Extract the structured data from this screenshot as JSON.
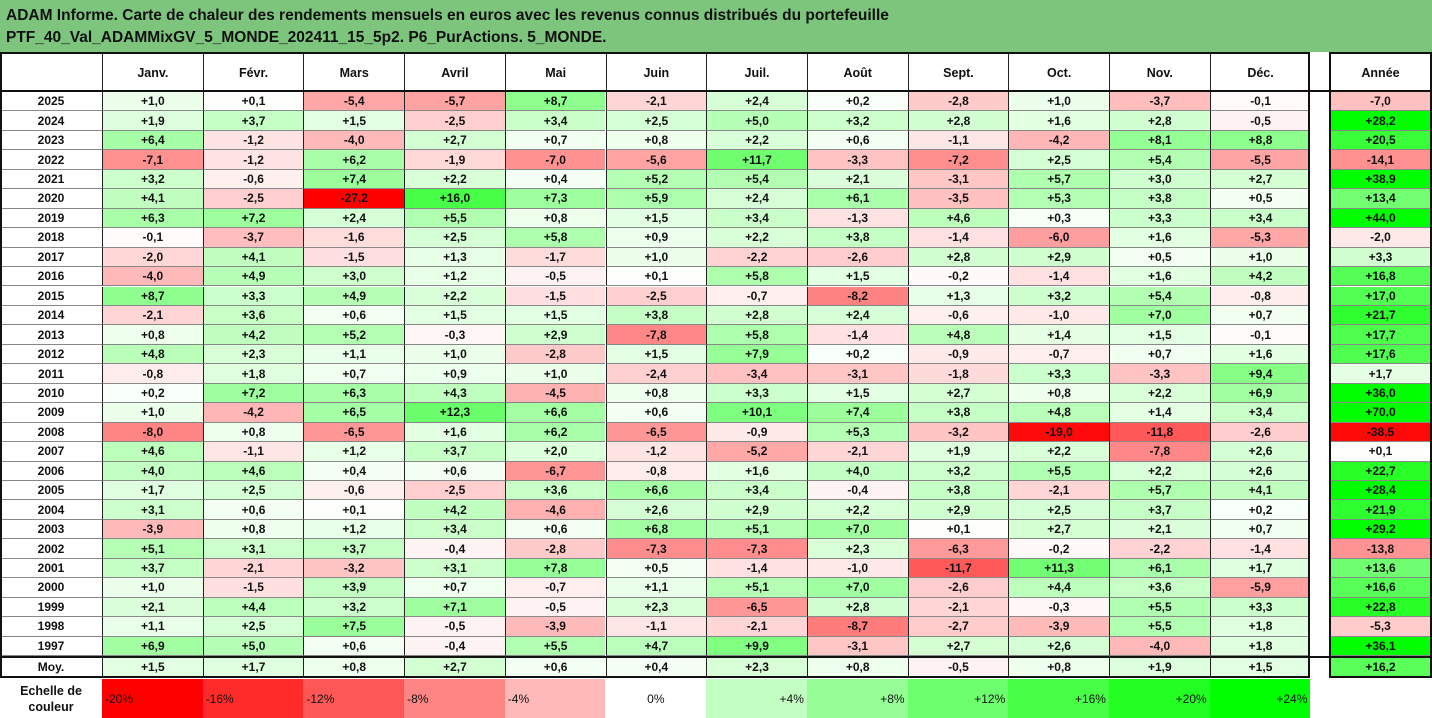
{
  "title": {
    "line1": "ADAM Informe. Carte de chaleur des rendements mensuels en euros avec les revenus connus distribués du portefeuille",
    "line2": "PTF_40_Val_ADAMMixGV_5_MONDE_202411_15_5p2. P6_PurActions. 5_MONDE."
  },
  "chart_data": {
    "type": "heatmap",
    "columns": [
      "Janv.",
      "Févr.",
      "Mars",
      "Avril",
      "Mai",
      "Juin",
      "Juil.",
      "Août",
      "Sept.",
      "Oct.",
      "Nov.",
      "Déc."
    ],
    "year_column": "Année",
    "rows": [
      {
        "label": "2025",
        "values": [
          1.0,
          0.1,
          -5.4,
          -5.7,
          8.7,
          -2.1,
          2.4,
          0.2,
          -2.8,
          1.0,
          -3.7,
          -0.1
        ],
        "year": -7.0
      },
      {
        "label": "2024",
        "values": [
          1.9,
          3.7,
          1.5,
          -2.5,
          3.4,
          2.5,
          5.0,
          3.2,
          2.8,
          1.6,
          2.8,
          -0.5
        ],
        "year": 28.2
      },
      {
        "label": "2023",
        "values": [
          6.4,
          -1.2,
          -4.0,
          2.7,
          0.7,
          0.8,
          2.2,
          0.6,
          -1.1,
          -4.2,
          8.1,
          8.8
        ],
        "year": 20.5
      },
      {
        "label": "2022",
        "values": [
          -7.1,
          -1.2,
          6.2,
          -1.9,
          -7.0,
          -5.6,
          11.7,
          -3.3,
          -7.2,
          2.5,
          5.4,
          -5.5
        ],
        "year": -14.1
      },
      {
        "label": "2021",
        "values": [
          3.2,
          -0.6,
          7.4,
          2.2,
          0.4,
          5.2,
          5.4,
          2.1,
          -3.1,
          5.7,
          3.0,
          2.7
        ],
        "year": 38.9
      },
      {
        "label": "2020",
        "values": [
          4.1,
          -2.5,
          -27.2,
          16.0,
          7.3,
          5.9,
          2.4,
          6.1,
          -3.5,
          5.3,
          3.8,
          0.5
        ],
        "year": 13.4
      },
      {
        "label": "2019",
        "values": [
          6.3,
          7.2,
          2.4,
          5.5,
          0.8,
          1.5,
          3.4,
          -1.3,
          4.6,
          0.3,
          3.3,
          3.4
        ],
        "year": 44.0
      },
      {
        "label": "2018",
        "values": [
          -0.1,
          -3.7,
          -1.6,
          2.5,
          5.8,
          0.9,
          2.2,
          3.8,
          -1.4,
          -6.0,
          1.6,
          -5.3
        ],
        "year": -2.0
      },
      {
        "label": "2017",
        "values": [
          -2.0,
          4.1,
          -1.5,
          1.3,
          -1.7,
          1.0,
          -2.2,
          -2.6,
          2.8,
          2.9,
          0.5,
          1.0
        ],
        "year": 3.3
      },
      {
        "label": "2016",
        "values": [
          -4.0,
          4.9,
          3.0,
          1.2,
          -0.5,
          0.1,
          5.8,
          1.5,
          -0.2,
          -1.4,
          1.6,
          4.2
        ],
        "year": 16.8
      },
      {
        "label": "2015",
        "values": [
          8.7,
          3.3,
          4.9,
          2.2,
          -1.5,
          -2.5,
          -0.7,
          -8.2,
          1.3,
          3.2,
          5.4,
          -0.8
        ],
        "year": 17.0
      },
      {
        "label": "2014",
        "values": [
          -2.1,
          3.6,
          0.6,
          1.5,
          1.5,
          3.8,
          2.8,
          2.4,
          -0.6,
          -1.0,
          7.0,
          0.7
        ],
        "year": 21.7
      },
      {
        "label": "2013",
        "values": [
          0.8,
          4.2,
          5.2,
          -0.3,
          2.9,
          -7.8,
          5.8,
          -1.4,
          4.8,
          1.4,
          1.5,
          -0.1
        ],
        "year": 17.7
      },
      {
        "label": "2012",
        "values": [
          4.8,
          2.3,
          1.1,
          1.0,
          -2.8,
          1.5,
          7.9,
          0.2,
          -0.9,
          -0.7,
          0.7,
          1.6
        ],
        "year": 17.6
      },
      {
        "label": "2011",
        "values": [
          -0.8,
          1.8,
          0.7,
          0.9,
          1.0,
          -2.4,
          -3.4,
          -3.1,
          -1.8,
          3.3,
          -3.3,
          9.4
        ],
        "year": 1.7
      },
      {
        "label": "2010",
        "values": [
          0.2,
          7.2,
          6.3,
          4.3,
          -4.5,
          0.8,
          3.3,
          1.5,
          2.7,
          0.8,
          2.2,
          6.9
        ],
        "year": 36.0
      },
      {
        "label": "2009",
        "values": [
          1.0,
          -4.2,
          6.5,
          12.3,
          6.6,
          0.6,
          10.1,
          7.4,
          3.8,
          4.8,
          1.4,
          3.4
        ],
        "year": 70.0
      },
      {
        "label": "2008",
        "values": [
          -8.0,
          0.8,
          -6.5,
          1.6,
          6.2,
          -6.5,
          -0.9,
          5.3,
          -3.2,
          -19.0,
          -11.8,
          -2.6
        ],
        "year": -38.5
      },
      {
        "label": "2007",
        "values": [
          4.6,
          -1.1,
          1.2,
          3.7,
          2.0,
          -1.2,
          -5.2,
          -2.1,
          1.9,
          2.2,
          -7.8,
          2.6
        ],
        "year": 0.1
      },
      {
        "label": "2006",
        "values": [
          4.0,
          4.6,
          0.4,
          0.6,
          -6.7,
          -0.8,
          1.6,
          4.0,
          3.2,
          5.5,
          2.2,
          2.6
        ],
        "year": 22.7
      },
      {
        "label": "2005",
        "values": [
          1.7,
          2.5,
          -0.6,
          -2.5,
          3.6,
          6.6,
          3.4,
          -0.4,
          3.8,
          -2.1,
          5.7,
          4.1
        ],
        "year": 28.4
      },
      {
        "label": "2004",
        "values": [
          3.1,
          0.6,
          0.1,
          4.2,
          -4.6,
          2.6,
          2.9,
          2.2,
          2.9,
          2.5,
          3.7,
          0.2
        ],
        "year": 21.9
      },
      {
        "label": "2003",
        "values": [
          -3.9,
          0.8,
          1.2,
          3.4,
          0.6,
          6.8,
          5.1,
          7.0,
          0.1,
          2.7,
          2.1,
          0.7
        ],
        "year": 29.2
      },
      {
        "label": "2002",
        "values": [
          5.1,
          3.1,
          3.7,
          -0.4,
          -2.8,
          -7.3,
          -7.3,
          2.3,
          -6.3,
          -0.2,
          -2.2,
          -1.4
        ],
        "year": -13.8
      },
      {
        "label": "2001",
        "values": [
          3.7,
          -2.1,
          -3.2,
          3.1,
          7.8,
          0.5,
          -1.4,
          -1.0,
          -11.7,
          11.3,
          6.1,
          1.7
        ],
        "year": 13.6
      },
      {
        "label": "2000",
        "values": [
          1.0,
          -1.5,
          3.9,
          0.7,
          -0.7,
          1.1,
          5.1,
          7.0,
          -2.6,
          4.4,
          3.6,
          -5.9
        ],
        "year": 16.6
      },
      {
        "label": "1999",
        "values": [
          2.1,
          4.4,
          3.2,
          7.1,
          -0.5,
          2.3,
          -6.5,
          2.8,
          -2.1,
          -0.3,
          5.5,
          3.3
        ],
        "year": 22.8
      },
      {
        "label": "1998",
        "values": [
          1.1,
          2.5,
          7.5,
          -0.5,
          -3.9,
          -1.1,
          -2.1,
          -8.7,
          -2.7,
          -3.9,
          5.5,
          1.8
        ],
        "year": -5.3
      },
      {
        "label": "1997",
        "values": [
          6.9,
          5.0,
          0.6,
          -0.4,
          5.5,
          4.7,
          9.9,
          -3.1,
          2.7,
          2.6,
          -4.0,
          1.8
        ],
        "year": 36.1
      }
    ],
    "average": {
      "label": "Moy.",
      "values": [
        1.5,
        1.7,
        0.8,
        2.7,
        0.6,
        0.4,
        2.3,
        0.8,
        -0.5,
        0.8,
        1.9,
        1.5
      ],
      "year": 16.2
    },
    "scale": {
      "label_line1": "Echelle de",
      "label_line2": "couleur",
      "steps": [
        {
          "text": "-20%",
          "value": -20,
          "align": "left"
        },
        {
          "text": "-16%",
          "value": -16,
          "align": "left"
        },
        {
          "text": "-12%",
          "value": -12,
          "align": "left"
        },
        {
          "text": "-8%",
          "value": -8,
          "align": "left"
        },
        {
          "text": "-4%",
          "value": -4,
          "align": "left"
        },
        {
          "text": "0%",
          "value": 0,
          "align": "center"
        },
        {
          "text": "+4%",
          "value": 4,
          "align": "right"
        },
        {
          "text": "+8%",
          "value": 8,
          "align": "right"
        },
        {
          "text": "+12%",
          "value": 12,
          "align": "right"
        },
        {
          "text": "+16%",
          "value": 16,
          "align": "right"
        },
        {
          "text": "+20%",
          "value": 20,
          "align": "right"
        },
        {
          "text": "+24%",
          "value": 24,
          "align": "right"
        }
      ]
    },
    "colors": {
      "negative_max": "#ff0000",
      "positive_max": "#00ff00",
      "neutral": "#ffffff"
    }
  }
}
